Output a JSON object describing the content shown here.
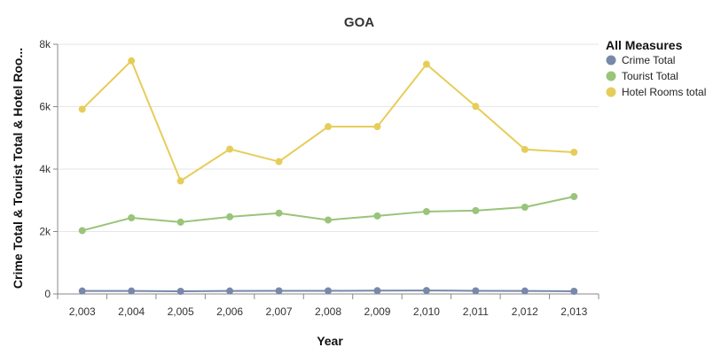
{
  "chart_data": {
    "type": "line",
    "title": "GOA",
    "xlabel": "Year",
    "ylabel": "Crime Total & Tourist Total & Hotel Roo...",
    "categories": [
      "2,003",
      "2,004",
      "2,005",
      "2,006",
      "2,007",
      "2,008",
      "2,009",
      "2,010",
      "2,011",
      "2,012",
      "2,013"
    ],
    "ylim": [
      0,
      8000
    ],
    "y_ticks": [
      0,
      2000,
      4000,
      6000,
      8000
    ],
    "y_tick_labels": [
      "0",
      "2k",
      "4k",
      "6k",
      "8k"
    ],
    "grid": "horizontal",
    "legend_title": "All Measures",
    "legend_position": "top-right",
    "series": [
      {
        "name": "Crime Total",
        "color": "#7788aa",
        "values": [
          95,
          95,
          85,
          95,
          100,
          100,
          105,
          110,
          100,
          95,
          85
        ]
      },
      {
        "name": "Tourist Total",
        "color": "#99c47a",
        "values": [
          2030,
          2440,
          2300,
          2470,
          2590,
          2370,
          2500,
          2640,
          2670,
          2780,
          3120
        ]
      },
      {
        "name": "Hotel Rooms total",
        "color": "#e6cd5a",
        "values": [
          5920,
          7470,
          3620,
          4640,
          4240,
          5360,
          5360,
          7360,
          6010,
          4630,
          4540
        ]
      }
    ]
  }
}
